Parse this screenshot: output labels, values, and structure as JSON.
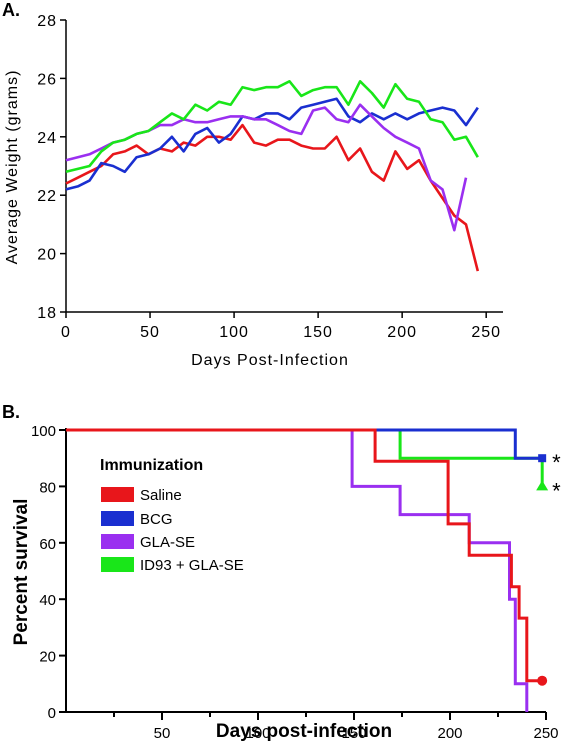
{
  "colors": {
    "saline": "#e8161b",
    "bcg": "#1a2fd0",
    "gla_se": "#9a2ff0",
    "id93": "#19e619",
    "axis": "#000000"
  },
  "chart_data": [
    {
      "panel_label": "A.",
      "type": "line",
      "xlabel": "Days Post-Infection",
      "ylabel": "Average Weight (grams)",
      "xlim": [
        0,
        260
      ],
      "ylim": [
        18,
        28
      ],
      "x_ticks": [
        0,
        50,
        100,
        150,
        200,
        250
      ],
      "y_ticks": [
        18,
        20,
        22,
        24,
        26,
        28
      ],
      "grid": false,
      "series": [
        {
          "key": "saline",
          "x": [
            0,
            7,
            14,
            21,
            28,
            35,
            42,
            49,
            56,
            63,
            70,
            77,
            84,
            91,
            98,
            105,
            112,
            119,
            126,
            133,
            140,
            147,
            154,
            161,
            168,
            175,
            182,
            189,
            196,
            203,
            210,
            217,
            224,
            231,
            238,
            245
          ],
          "y": [
            22.4,
            22.6,
            22.8,
            23.0,
            23.4,
            23.5,
            23.7,
            23.4,
            23.6,
            23.5,
            23.8,
            23.7,
            24.0,
            24.0,
            23.9,
            24.4,
            23.8,
            23.7,
            23.9,
            23.9,
            23.7,
            23.6,
            23.6,
            24.0,
            23.2,
            23.6,
            22.8,
            22.5,
            23.5,
            22.9,
            23.2,
            22.5,
            21.9,
            21.3,
            21.0,
            19.4
          ]
        },
        {
          "key": "bcg",
          "x": [
            0,
            7,
            14,
            21,
            28,
            35,
            42,
            49,
            56,
            63,
            70,
            77,
            84,
            91,
            98,
            105,
            112,
            119,
            126,
            133,
            140,
            147,
            154,
            161,
            168,
            175,
            182,
            189,
            196,
            203,
            210,
            217,
            224,
            231,
            238,
            245
          ],
          "y": [
            22.2,
            22.3,
            22.5,
            23.1,
            23.0,
            22.8,
            23.3,
            23.4,
            23.6,
            24.0,
            23.5,
            24.1,
            24.3,
            23.8,
            24.1,
            24.7,
            24.6,
            24.8,
            24.8,
            24.6,
            25.0,
            25.1,
            25.2,
            25.3,
            24.7,
            24.5,
            24.8,
            24.6,
            24.8,
            24.6,
            24.8,
            24.9,
            25.0,
            24.9,
            24.4,
            25.0
          ]
        },
        {
          "key": "gla_se",
          "x": [
            0,
            7,
            14,
            21,
            28,
            35,
            42,
            49,
            56,
            63,
            70,
            77,
            84,
            91,
            98,
            105,
            112,
            119,
            126,
            133,
            140,
            147,
            154,
            161,
            168,
            175,
            182,
            189,
            196,
            203,
            210,
            217,
            224,
            231,
            238
          ],
          "y": [
            23.2,
            23.3,
            23.4,
            23.6,
            23.8,
            23.9,
            24.1,
            24.2,
            24.4,
            24.4,
            24.6,
            24.5,
            24.5,
            24.6,
            24.7,
            24.7,
            24.6,
            24.6,
            24.4,
            24.2,
            24.1,
            24.9,
            25.0,
            24.6,
            24.5,
            25.1,
            24.7,
            24.3,
            24.0,
            23.8,
            23.6,
            22.5,
            22.2,
            20.8,
            22.6
          ]
        },
        {
          "key": "id93",
          "x": [
            0,
            7,
            14,
            21,
            28,
            35,
            42,
            49,
            56,
            63,
            70,
            77,
            84,
            91,
            98,
            105,
            112,
            119,
            126,
            133,
            140,
            147,
            154,
            161,
            168,
            175,
            182,
            189,
            196,
            203,
            210,
            217,
            224,
            231,
            238,
            245
          ],
          "y": [
            22.8,
            22.9,
            23.0,
            23.5,
            23.8,
            23.9,
            24.1,
            24.2,
            24.5,
            24.8,
            24.6,
            25.1,
            24.9,
            25.2,
            25.1,
            25.7,
            25.6,
            25.7,
            25.7,
            25.9,
            25.4,
            25.6,
            25.7,
            25.7,
            25.1,
            25.9,
            25.5,
            25.0,
            25.8,
            25.3,
            25.2,
            24.6,
            24.5,
            23.9,
            24.0,
            23.3
          ]
        }
      ]
    },
    {
      "panel_label": "B.",
      "type": "line",
      "step": true,
      "xlabel": "Days post-infection",
      "ylabel": "Percent survival",
      "xlim": [
        0,
        250
      ],
      "ylim": [
        0,
        100
      ],
      "x_ticks": [
        50,
        100,
        150,
        200,
        250
      ],
      "y_ticks": [
        0,
        20,
        40,
        60,
        80,
        100
      ],
      "grid": false,
      "legend_title": "Immunization",
      "legend_placement": "center-left",
      "series": [
        {
          "key": "saline",
          "name": "Saline",
          "x": [
            0,
            161,
            199,
            210,
            232,
            236,
            240,
            248
          ],
          "y": [
            100,
            88.9,
            66.7,
            55.6,
            44.4,
            33.3,
            11.1,
            11.1
          ],
          "end_marker": "circle"
        },
        {
          "key": "bcg",
          "name": "BCG",
          "x": [
            0,
            234,
            248
          ],
          "y": [
            100,
            90,
            90
          ],
          "end_marker": "square",
          "annotation": "*"
        },
        {
          "key": "gla_se",
          "name": "GLA-SE",
          "x": [
            0,
            149,
            174,
            210,
            231,
            234,
            240
          ],
          "y": [
            100,
            80,
            70,
            60,
            40,
            10,
            0
          ]
        },
        {
          "key": "id93",
          "name": "ID93 + GLA-SE",
          "x": [
            0,
            174,
            199,
            248
          ],
          "y": [
            100,
            90,
            90,
            80
          ],
          "end_marker": "triangle",
          "annotation": "*"
        }
      ]
    }
  ]
}
